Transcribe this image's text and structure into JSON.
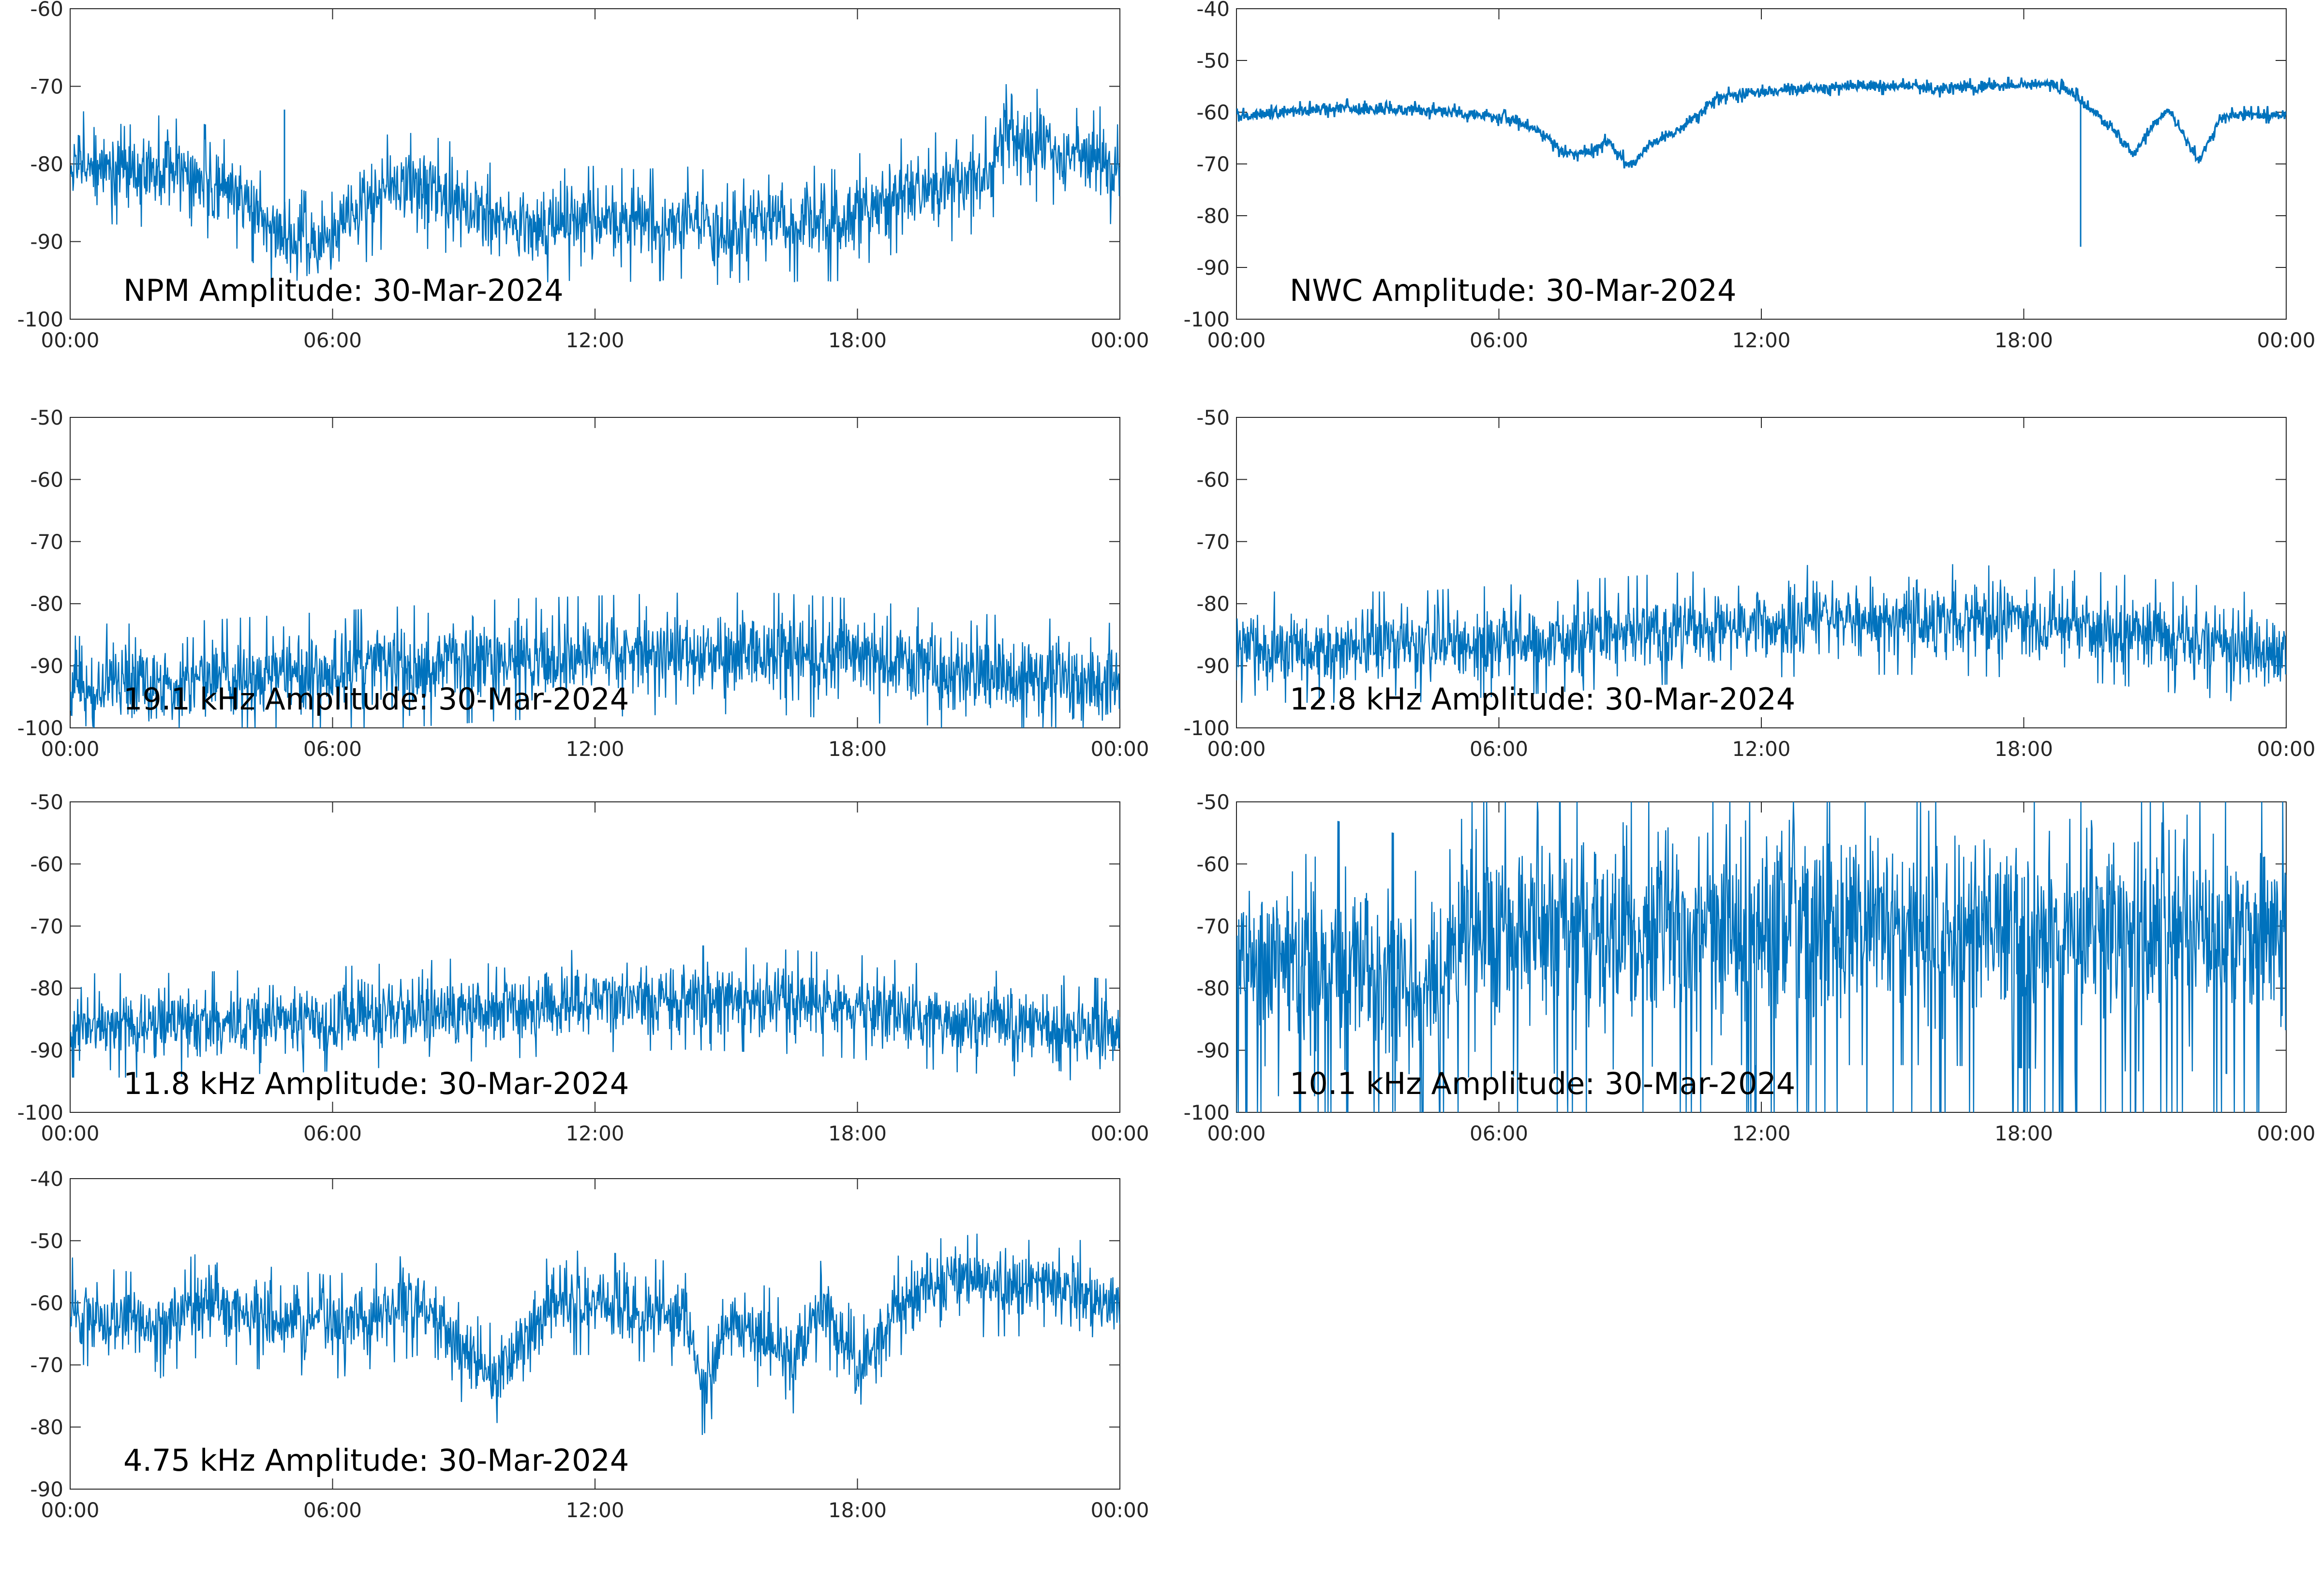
{
  "colors": {
    "series": "#0072BD",
    "axes": "#262626",
    "background": "#FFFFFF"
  },
  "chart_data": [
    {
      "type": "line",
      "title": "NPM Amplitude: 30-Mar-2024",
      "xlabel": "",
      "ylabel": "",
      "xticks": [
        "00:00",
        "06:00",
        "12:00",
        "18:00",
        "00:00"
      ],
      "xlim": [
        0,
        24
      ],
      "ylim": [
        -100,
        -60
      ],
      "yticks": [
        -100,
        -90,
        -80,
        -70,
        -60
      ],
      "grid": false,
      "series": [
        {
          "x": [
            0,
            1,
            2,
            3,
            4,
            4.5,
            5,
            5.5,
            6,
            6.5,
            7,
            7.5,
            8,
            8.5,
            9,
            9.5,
            10,
            11,
            12,
            13,
            14,
            15,
            16,
            16.5,
            17,
            17.5,
            18,
            18.5,
            19,
            20,
            21,
            21.3,
            21.5,
            22,
            23,
            24
          ],
          "y": [
            -80.5,
            -80.5,
            -81,
            -82,
            -84,
            -88,
            -90,
            -91,
            -89,
            -87,
            -84,
            -83,
            -83.5,
            -84,
            -85,
            -87,
            -87.5,
            -88,
            -87.5,
            -88,
            -87.5,
            -88.5,
            -87,
            -88,
            -87.5,
            -88,
            -86,
            -85,
            -84,
            -83,
            -81,
            -77,
            -77,
            -77.5,
            -78.5,
            -81
          ],
          "noise": 2.6,
          "spikes": [
            {
              "x": 4.9,
              "y": -73
            }
          ]
        }
      ]
    },
    {
      "type": "line",
      "title": "NWC Amplitude: 30-Mar-2024",
      "xlabel": "",
      "ylabel": "",
      "xticks": [
        "00:00",
        "06:00",
        "12:00",
        "18:00",
        "00:00"
      ],
      "xlim": [
        0,
        24
      ],
      "ylim": [
        -100,
        -40
      ],
      "yticks": [
        -100,
        -90,
        -80,
        -70,
        -60,
        -50,
        -40
      ],
      "grid": false,
      "series": [
        {
          "x": [
            0,
            1,
            1.5,
            2,
            2.5,
            3,
            4,
            5,
            6,
            6.5,
            7,
            7.5,
            8,
            8.5,
            9,
            9.5,
            10,
            10.5,
            11,
            12,
            13,
            14,
            15,
            16,
            17,
            18,
            18.5,
            19,
            19.5,
            20,
            20.5,
            21,
            21.3,
            21.7,
            22,
            22.5,
            23,
            24
          ],
          "y": [
            -61,
            -60,
            -59.5,
            -59.5,
            -59,
            -59.5,
            -59.5,
            -60,
            -61,
            -62,
            -64,
            -68,
            -68,
            -65.5,
            -70.5,
            -66,
            -64,
            -61,
            -57,
            -56,
            -55.5,
            -55,
            -55,
            -55.5,
            -55,
            -55,
            -54.5,
            -55.5,
            -59,
            -63,
            -68,
            -62,
            -59.5,
            -65,
            -69.5,
            -61,
            -60.5,
            -60.5
          ],
          "noise": 0.6,
          "spikes": [
            {
              "x": 19.3,
              "y": -86
            },
            {
              "x": 2.3,
              "y": -58
            }
          ]
        }
      ]
    },
    {
      "type": "line",
      "title": "19.1 kHz Amplitude: 30-Mar-2024",
      "xlabel": "",
      "ylabel": "",
      "xticks": [
        "00:00",
        "06:00",
        "12:00",
        "18:00",
        "00:00"
      ],
      "xlim": [
        0,
        24
      ],
      "ylim": [
        -100,
        -50
      ],
      "yticks": [
        -100,
        -90,
        -80,
        -70,
        -60,
        -50
      ],
      "grid": false,
      "series": [
        {
          "x": [
            0,
            2,
            4,
            6,
            8,
            10,
            12,
            14,
            16,
            18,
            20,
            22,
            24
          ],
          "y": [
            -93,
            -93,
            -92,
            -91,
            -90,
            -89,
            -88.5,
            -88,
            -88,
            -89,
            -91,
            -92,
            -93
          ],
          "noise": 3.5
        }
      ]
    },
    {
      "type": "line",
      "title": "12.8 kHz Amplitude: 30-Mar-2024",
      "xlabel": "",
      "ylabel": "",
      "xticks": [
        "00:00",
        "06:00",
        "12:00",
        "18:00",
        "00:00"
      ],
      "xlim": [
        0,
        24
      ],
      "ylim": [
        -100,
        -50
      ],
      "yticks": [
        -100,
        -90,
        -80,
        -70,
        -60,
        -50
      ],
      "grid": false,
      "series": [
        {
          "x": [
            0,
            2,
            4,
            6,
            8,
            10,
            12,
            14,
            16,
            18,
            20,
            22,
            24
          ],
          "y": [
            -87,
            -87,
            -87,
            -86,
            -85,
            -84,
            -83,
            -82.5,
            -82.5,
            -83,
            -84,
            -86,
            -88
          ],
          "noise": 3.2
        }
      ]
    },
    {
      "type": "line",
      "title": "11.8 kHz Amplitude: 30-Mar-2024",
      "xlabel": "",
      "ylabel": "",
      "xticks": [
        "00:00",
        "06:00",
        "12:00",
        "18:00",
        "00:00"
      ],
      "xlim": [
        0,
        24
      ],
      "ylim": [
        -100,
        -50
      ],
      "yticks": [
        -100,
        -90,
        -80,
        -70,
        -60,
        -50
      ],
      "grid": false,
      "series": [
        {
          "x": [
            0,
            2,
            4,
            6,
            8,
            10,
            12,
            14,
            16,
            18,
            20,
            22,
            24
          ],
          "y": [
            -86,
            -86,
            -85.5,
            -85,
            -84,
            -83,
            -82,
            -81.5,
            -82,
            -83,
            -85,
            -86,
            -87
          ],
          "noise": 3
        }
      ]
    },
    {
      "type": "line",
      "title": "10.1 kHz Amplitude: 30-Mar-2024",
      "xlabel": "",
      "ylabel": "",
      "xticks": [
        "00:00",
        "06:00",
        "12:00",
        "18:00",
        "00:00"
      ],
      "xlim": [
        0,
        24
      ],
      "ylim": [
        -100,
        -50
      ],
      "yticks": [
        -100,
        -90,
        -80,
        -70,
        -60,
        -50
      ],
      "grid": false,
      "series": [
        {
          "x": [
            0,
            2,
            4,
            4.8,
            5,
            6,
            8,
            10,
            12,
            14,
            16,
            18,
            20,
            22,
            24
          ],
          "y": [
            -75,
            -75,
            -78,
            -78,
            -72,
            -72,
            -71,
            -70,
            -70,
            -70,
            -70,
            -70.5,
            -71,
            -71,
            -72
          ],
          "noise": 8,
          "dips": -100
        }
      ]
    },
    {
      "type": "line",
      "title": "4.75 kHz Amplitude: 30-Mar-2024",
      "xlabel": "",
      "ylabel": "",
      "xticks": [
        "00:00",
        "06:00",
        "12:00",
        "18:00",
        "00:00"
      ],
      "xlim": [
        0,
        24
      ],
      "ylim": [
        -90,
        -40
      ],
      "yticks": [
        -90,
        -80,
        -70,
        -60,
        -50,
        -40
      ],
      "grid": false,
      "series": [
        {
          "x": [
            0,
            1,
            2,
            3,
            4,
            5,
            6,
            7,
            8,
            8.5,
            9,
            9.5,
            10,
            10.5,
            11,
            12,
            13,
            14,
            14.5,
            15,
            16,
            16.5,
            17,
            17.5,
            18,
            18.5,
            19,
            19.5,
            20,
            21,
            22,
            23,
            24
          ],
          "y": [
            -61,
            -63,
            -64,
            -60,
            -62,
            -63,
            -64,
            -62,
            -60,
            -64,
            -68,
            -72,
            -70,
            -66,
            -60,
            -60,
            -61,
            -62,
            -74,
            -63,
            -66,
            -70,
            -61,
            -63,
            -72,
            -66,
            -60,
            -58,
            -58,
            -57,
            -57,
            -58,
            -61
          ],
          "noise": 3
        }
      ]
    }
  ]
}
